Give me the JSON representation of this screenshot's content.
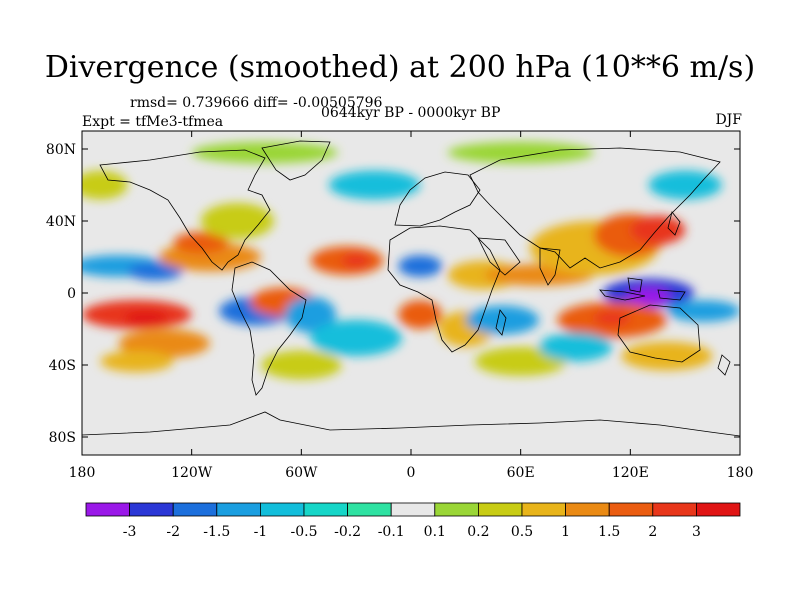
{
  "title": "Divergence (smoothed) at 200 hPa (10**6 m/s)",
  "stats_text": "rmsd= 0.739666 diff= -0.00505796",
  "experiment": "Expt = tfMe3-tfmea",
  "period": "0644kyr BP - 0000kyr BP",
  "season": "DJF",
  "map": {
    "projection": "cylindrical-equidistant",
    "lat_range": [
      -90,
      90
    ],
    "lon_range": [
      -180,
      180
    ],
    "lat_ticks": [
      "80N",
      "40N",
      "0",
      "40S",
      "80S"
    ],
    "lon_ticks": [
      "180",
      "120W",
      "60W",
      "0",
      "60E",
      "120E",
      "180"
    ],
    "blobs": [
      {
        "lon": -150,
        "lat": -12,
        "rx": 30,
        "ry": 8,
        "level": 13
      },
      {
        "lon": -145,
        "lat": -14,
        "rx": 12,
        "ry": 4,
        "level": 14
      },
      {
        "lon": -160,
        "lat": 15,
        "rx": 25,
        "ry": 6,
        "level": 3
      },
      {
        "lon": -140,
        "lat": 12,
        "rx": 15,
        "ry": 5,
        "level": 2
      },
      {
        "lon": -135,
        "lat": -28,
        "rx": 25,
        "ry": 8,
        "level": 11
      },
      {
        "lon": -150,
        "lat": -38,
        "rx": 20,
        "ry": 6,
        "level": 10
      },
      {
        "lon": -110,
        "lat": 20,
        "rx": 28,
        "ry": 8,
        "level": 11
      },
      {
        "lon": -115,
        "lat": 28,
        "rx": 15,
        "ry": 6,
        "level": 12
      },
      {
        "lon": -95,
        "lat": 40,
        "rx": 20,
        "ry": 10,
        "level": 9
      },
      {
        "lon": -85,
        "lat": -10,
        "rx": 20,
        "ry": 8,
        "level": 2
      },
      {
        "lon": -70,
        "lat": -5,
        "rx": 18,
        "ry": 8,
        "level": 12
      },
      {
        "lon": -55,
        "lat": -12,
        "rx": 14,
        "ry": 10,
        "level": 3
      },
      {
        "lon": -35,
        "lat": 18,
        "rx": 20,
        "ry": 8,
        "level": 12
      },
      {
        "lon": -30,
        "lat": 18,
        "rx": 8,
        "ry": 4,
        "level": 13
      },
      {
        "lon": -30,
        "lat": -25,
        "rx": 25,
        "ry": 10,
        "level": 4
      },
      {
        "lon": -60,
        "lat": -40,
        "rx": 22,
        "ry": 8,
        "level": 9
      },
      {
        "lon": 5,
        "lat": 15,
        "rx": 12,
        "ry": 6,
        "level": 2
      },
      {
        "lon": 5,
        "lat": -12,
        "rx": 12,
        "ry": 8,
        "level": 12
      },
      {
        "lon": 30,
        "lat": -20,
        "rx": 15,
        "ry": 10,
        "level": 10
      },
      {
        "lon": 40,
        "lat": 10,
        "rx": 20,
        "ry": 8,
        "level": 10
      },
      {
        "lon": 50,
        "lat": -15,
        "rx": 20,
        "ry": 8,
        "level": 3
      },
      {
        "lon": 70,
        "lat": 10,
        "rx": 30,
        "ry": 6,
        "level": 11
      },
      {
        "lon": 100,
        "lat": 25,
        "rx": 35,
        "ry": 15,
        "level": 10
      },
      {
        "lon": 120,
        "lat": 32,
        "rx": 20,
        "ry": 12,
        "level": 12
      },
      {
        "lon": 135,
        "lat": 35,
        "rx": 15,
        "ry": 8,
        "level": 13
      },
      {
        "lon": 130,
        "lat": 0,
        "rx": 25,
        "ry": 8,
        "level": 1
      },
      {
        "lon": 130,
        "lat": -2,
        "rx": 12,
        "ry": 5,
        "level": 0
      },
      {
        "lon": 110,
        "lat": -15,
        "rx": 30,
        "ry": 10,
        "level": 12
      },
      {
        "lon": 110,
        "lat": -14,
        "rx": 10,
        "ry": 4,
        "level": 13
      },
      {
        "lon": 160,
        "lat": -10,
        "rx": 20,
        "ry": 6,
        "level": 3
      },
      {
        "lon": 60,
        "lat": -38,
        "rx": 25,
        "ry": 8,
        "level": 9
      },
      {
        "lon": 90,
        "lat": -30,
        "rx": 20,
        "ry": 8,
        "level": 4
      },
      {
        "lon": 140,
        "lat": -35,
        "rx": 25,
        "ry": 8,
        "level": 10
      },
      {
        "lon": -20,
        "lat": 60,
        "rx": 25,
        "ry": 8,
        "level": 4
      },
      {
        "lon": -80,
        "lat": 78,
        "rx": 40,
        "ry": 6,
        "level": 8
      },
      {
        "lon": 60,
        "lat": 78,
        "rx": 40,
        "ry": 6,
        "level": 8
      },
      {
        "lon": 150,
        "lat": 60,
        "rx": 20,
        "ry": 8,
        "level": 4
      },
      {
        "lon": -170,
        "lat": 60,
        "rx": 15,
        "ry": 8,
        "level": 9
      }
    ]
  },
  "colorbar": {
    "labels": [
      "-3",
      "-2",
      "-1.5",
      "-1",
      "-0.5",
      "-0.2",
      "-0.1",
      "0.1",
      "0.2",
      "0.5",
      "1",
      "1.5",
      "2",
      "3"
    ],
    "colors": [
      "#9a18e8",
      "#2b37d6",
      "#1c6fdc",
      "#1a9ee0",
      "#12bedb",
      "#16d6c8",
      "#2ee2a2",
      "#e8e8e8",
      "#9ad636",
      "#c8cc14",
      "#e8b41a",
      "#ea8a14",
      "#ea5c10",
      "#e8361a",
      "#e01414"
    ]
  },
  "continent_color": "#000000",
  "background_color": "#e8e8e8"
}
